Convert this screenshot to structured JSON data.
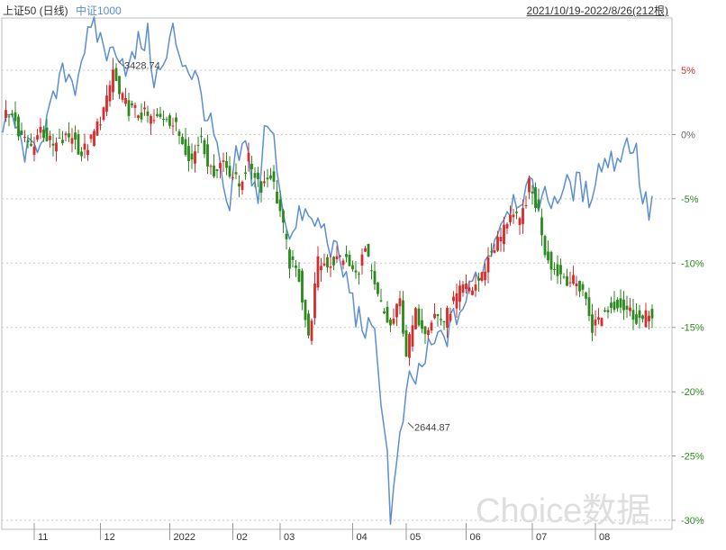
{
  "header": {
    "series_a_label": "上证50 (日线)",
    "series_b_label": "中证1000",
    "date_range": "2021/10/19-2022/8/26(212根)"
  },
  "watermark": "Choice数据",
  "colors": {
    "up": "#d62c2c",
    "down": "#2a8a1c",
    "series_b": "#5b8fd1",
    "grid": "#c8c8c8",
    "positive_tick": "#d62c2c",
    "negative_tick": "#2a8a1c",
    "zero_tick": "#666666"
  },
  "chart_data": {
    "type": "line",
    "x_range": [
      0,
      212
    ],
    "ylim": [
      -30,
      5
    ],
    "y_ticks": [
      {
        "value": 5,
        "label": "5%"
      },
      {
        "value": 0,
        "label": "0%"
      },
      {
        "value": -5,
        "label": "-5%"
      },
      {
        "value": -10,
        "label": "-10%"
      },
      {
        "value": -15,
        "label": "-15%"
      },
      {
        "value": -20,
        "label": "-20%"
      },
      {
        "value": -25,
        "label": "-25%"
      },
      {
        "value": -30,
        "label": "-30%"
      }
    ],
    "x_ticks": [
      {
        "index": 10,
        "label": "11"
      },
      {
        "index": 31,
        "label": "12"
      },
      {
        "index": 53,
        "label": "2022"
      },
      {
        "index": 73,
        "label": "02"
      },
      {
        "index": 88,
        "label": "03"
      },
      {
        "index": 111,
        "label": "04"
      },
      {
        "index": 128,
        "label": "05"
      },
      {
        "index": 147,
        "label": "06"
      },
      {
        "index": 168,
        "label": "07"
      },
      {
        "index": 188,
        "label": "08"
      }
    ],
    "series": [
      {
        "name": "上证50 (日线)",
        "kind": "candlestick",
        "keypoints": [
          [
            0,
            1
          ],
          [
            3,
            2
          ],
          [
            5,
            0
          ],
          [
            9,
            -1
          ],
          [
            12,
            0.5
          ],
          [
            16,
            -1
          ],
          [
            22,
            0
          ],
          [
            25,
            -1.5
          ],
          [
            28,
            -0.5
          ],
          [
            33,
            2.5
          ],
          [
            35,
            5
          ],
          [
            37,
            3
          ],
          [
            40,
            2
          ],
          [
            45,
            1.5
          ],
          [
            48,
            1
          ],
          [
            52,
            1.5
          ],
          [
            55,
            0.5
          ],
          [
            60,
            -2
          ],
          [
            63,
            0
          ],
          [
            66,
            -3
          ],
          [
            70,
            -2
          ],
          [
            75,
            -4
          ],
          [
            78,
            -2
          ],
          [
            82,
            -4
          ],
          [
            85,
            -3
          ],
          [
            88,
            -6
          ],
          [
            91,
            -10
          ],
          [
            94,
            -11
          ],
          [
            97,
            -16
          ],
          [
            100,
            -10
          ],
          [
            104,
            -10
          ],
          [
            108,
            -9.5
          ],
          [
            112,
            -11
          ],
          [
            115,
            -9
          ],
          [
            118,
            -12
          ],
          [
            121,
            -14
          ],
          [
            123,
            -15
          ],
          [
            126,
            -13
          ],
          [
            128,
            -17
          ],
          [
            131,
            -14
          ],
          [
            134,
            -15
          ],
          [
            137,
            -14
          ],
          [
            140,
            -14.5
          ],
          [
            143,
            -13
          ],
          [
            146,
            -12
          ],
          [
            149,
            -12
          ],
          [
            152,
            -11
          ],
          [
            155,
            -9
          ],
          [
            158,
            -8
          ],
          [
            161,
            -6
          ],
          [
            164,
            -7
          ],
          [
            167,
            -4
          ],
          [
            170,
            -6
          ],
          [
            172,
            -9
          ],
          [
            175,
            -10.5
          ],
          [
            178,
            -11
          ],
          [
            181,
            -11.5
          ],
          [
            184,
            -12
          ],
          [
            187,
            -15
          ],
          [
            190,
            -14
          ],
          [
            195,
            -13
          ],
          [
            200,
            -14
          ],
          [
            203,
            -14.5
          ],
          [
            206,
            -13.8
          ]
        ],
        "annotations": [
          {
            "index": 36,
            "label": "3428.74"
          }
        ]
      },
      {
        "name": "中证1000",
        "kind": "line",
        "keypoints": [
          [
            0,
            0
          ],
          [
            3,
            1.5
          ],
          [
            6,
            -1
          ],
          [
            9,
            -1.5
          ],
          [
            12,
            0
          ],
          [
            15,
            1.5
          ],
          [
            18,
            4
          ],
          [
            20,
            5
          ],
          [
            23,
            4
          ],
          [
            26,
            7
          ],
          [
            29,
            8
          ],
          [
            31,
            7.5
          ],
          [
            34,
            6
          ],
          [
            36,
            7
          ],
          [
            40,
            5
          ],
          [
            43,
            7
          ],
          [
            46,
            7.5
          ],
          [
            48,
            4.5
          ],
          [
            51,
            5
          ],
          [
            54,
            8
          ],
          [
            56,
            6.5
          ],
          [
            58,
            5.5
          ],
          [
            61,
            4.5
          ],
          [
            63,
            3
          ],
          [
            66,
            0.5
          ],
          [
            68,
            -1
          ],
          [
            70,
            -5
          ],
          [
            72,
            -6
          ],
          [
            74,
            -2
          ],
          [
            77,
            -1
          ],
          [
            79,
            -3
          ],
          [
            81,
            -5
          ],
          [
            83,
            0
          ],
          [
            85,
            0.5
          ],
          [
            87,
            -2
          ],
          [
            89,
            -6
          ],
          [
            92,
            -8
          ],
          [
            95,
            -6
          ],
          [
            98,
            -7
          ],
          [
            101,
            -7
          ],
          [
            104,
            -8.5
          ],
          [
            107,
            -10
          ],
          [
            110,
            -12
          ],
          [
            112,
            -14
          ],
          [
            115,
            -15
          ],
          [
            118,
            -16
          ],
          [
            120,
            -20
          ],
          [
            122,
            -25
          ],
          [
            123,
            -29.5
          ],
          [
            125,
            -26
          ],
          [
            127,
            -22
          ],
          [
            129,
            -19.5
          ],
          [
            131,
            -19
          ],
          [
            133,
            -18
          ],
          [
            135,
            -17
          ],
          [
            138,
            -16
          ],
          [
            141,
            -15.5
          ],
          [
            144,
            -14
          ],
          [
            147,
            -13
          ],
          [
            150,
            -11
          ],
          [
            153,
            -10
          ],
          [
            156,
            -8
          ],
          [
            159,
            -6
          ],
          [
            162,
            -5
          ],
          [
            165,
            -4.5
          ],
          [
            168,
            -4.5
          ],
          [
            171,
            -5
          ],
          [
            174,
            -5
          ],
          [
            177,
            -4.5
          ],
          [
            180,
            -4
          ],
          [
            183,
            -4
          ],
          [
            186,
            -5
          ],
          [
            188,
            -3
          ],
          [
            191,
            -2
          ],
          [
            194,
            -2
          ],
          [
            197,
            -1
          ],
          [
            199,
            -0.5
          ],
          [
            201,
            -1.5
          ],
          [
            203,
            -5
          ],
          [
            205,
            -6
          ],
          [
            207,
            -4.5
          ]
        ],
        "annotations": [
          {
            "index": 128,
            "label": "2644.87"
          }
        ]
      }
    ]
  }
}
